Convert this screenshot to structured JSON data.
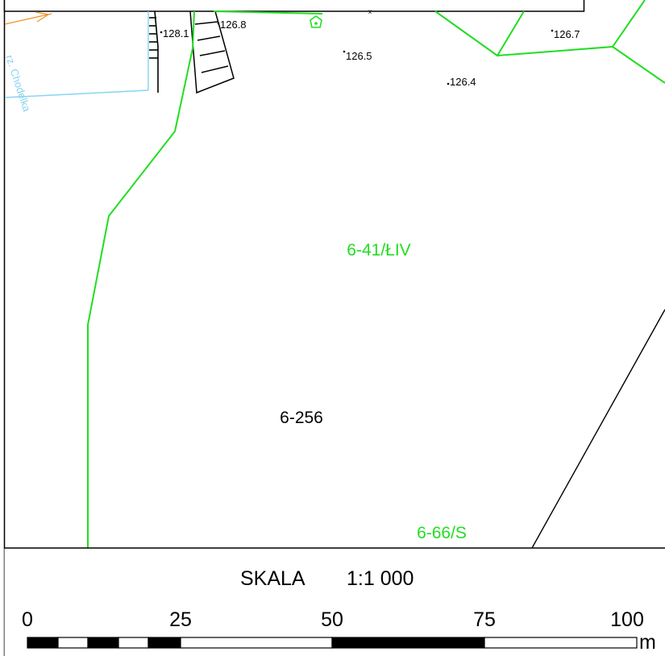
{
  "map": {
    "parcel_labels": {
      "use_class_north": "6-41/ŁIV",
      "parcel": "6-256",
      "use_class_south": "6-66/S"
    },
    "stream_name": "rz. Chodelka",
    "elevation_points": [
      "128.1",
      "126.8",
      "126.5",
      "126.7",
      "126.4"
    ]
  },
  "scale": {
    "title": "SKALA",
    "ratio": "1:1 000",
    "ticks": [
      "0",
      "25",
      "50",
      "75",
      "100"
    ],
    "unit": "m"
  },
  "colors": {
    "land_use_boundary": "#22dd22",
    "parcel_boundary": "#000000",
    "stream": "#88d4f0",
    "road_arrow": "#f0932a"
  }
}
